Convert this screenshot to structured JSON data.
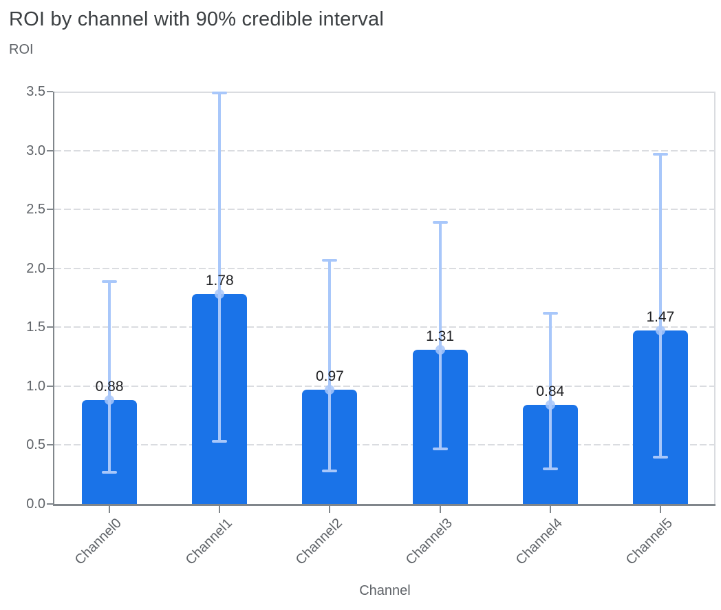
{
  "chart_data": {
    "type": "bar",
    "title": "ROI by channel with 90% credible interval",
    "ylabel": "ROI",
    "xlabel": "Channel",
    "categories": [
      "Channel0",
      "Channel1",
      "Channel2",
      "Channel3",
      "Channel4",
      "Channel5"
    ],
    "values": [
      0.88,
      1.78,
      0.97,
      1.31,
      0.84,
      1.47
    ],
    "bar_labels": [
      "0.88",
      "1.78",
      "0.97",
      "1.31",
      "0.84",
      "1.47"
    ],
    "error_low": [
      0.27,
      0.53,
      0.28,
      0.47,
      0.3,
      0.4
    ],
    "error_high": [
      1.89,
      3.49,
      2.07,
      2.39,
      1.62,
      2.97
    ],
    "ylim": [
      0,
      3.5
    ],
    "y_ticks": [
      "0.0",
      "0.5",
      "1.0",
      "1.5",
      "2.0",
      "2.5",
      "3.0",
      "3.5"
    ],
    "grid": "dashed horizontal",
    "legend": false,
    "colors": {
      "bar": "#1a73e8",
      "error_bar": "#a8c7fa",
      "title_text": "#3c4043",
      "axis_text": "#5f6368",
      "value_label_text": "#202124",
      "gridline": "#dadce0",
      "axis_line": "#80868b"
    }
  }
}
